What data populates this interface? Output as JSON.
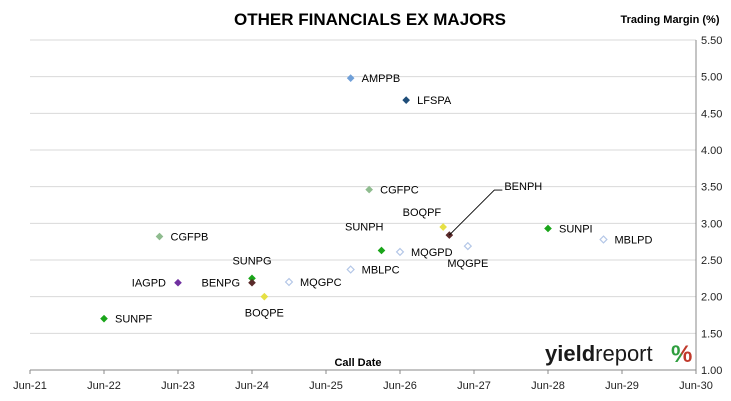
{
  "chart_data": {
    "type": "scatter",
    "title": "OTHER FINANCIALS EX MAJORS",
    "xlabel": "Call Date",
    "ylabel": "Trading Margin (%)",
    "x_ticks": [
      "Jun-21",
      "Jun-22",
      "Jun-23",
      "Jun-24",
      "Jun-25",
      "Jun-26",
      "Jun-27",
      "Jun-28",
      "Jun-29",
      "Jun-30"
    ],
    "xlim": [
      "2021-06",
      "2030-06"
    ],
    "ylim": [
      1.0,
      5.5
    ],
    "y_ticks": [
      "1.00",
      "1.50",
      "2.00",
      "2.50",
      "3.00",
      "3.50",
      "4.00",
      "4.50",
      "5.00",
      "5.50"
    ],
    "y_axis_position": "right",
    "grid": "horizontal",
    "points": [
      {
        "name": "AMPPB",
        "date": "2025-10",
        "y": 4.98,
        "color": "#6f9fd8",
        "filled": true
      },
      {
        "name": "LFSPA",
        "date": "2026-07",
        "y": 4.68,
        "color": "#1f4e79",
        "filled": true
      },
      {
        "name": "CGFPC",
        "date": "2026-01",
        "y": 3.46,
        "color": "#8fbc8f",
        "filled": true
      },
      {
        "name": "BENPH",
        "date": "2027-02",
        "y": 2.84,
        "color": "#5a2a2a",
        "filled": true
      },
      {
        "name": "BOQPF",
        "date": "2027-01",
        "y": 2.95,
        "color": "#e6e045",
        "filled": true
      },
      {
        "name": "SUNPI",
        "date": "2028-06",
        "y": 2.93,
        "color": "#1aa51a",
        "filled": true
      },
      {
        "name": "MBLPD",
        "date": "2029-03",
        "y": 2.78,
        "color": "#b4c7e7",
        "filled": false
      },
      {
        "name": "CGFPB",
        "date": "2023-03",
        "y": 2.82,
        "color": "#8fbc8f",
        "filled": true
      },
      {
        "name": "SUNPH",
        "date": "2026-03",
        "y": 2.63,
        "color": "#1aa51a",
        "filled": true
      },
      {
        "name": "MQGPD",
        "date": "2026-06",
        "y": 2.61,
        "color": "#b4c7e7",
        "filled": false
      },
      {
        "name": "MQGPE",
        "date": "2027-05",
        "y": 2.69,
        "color": "#b4c7e7",
        "filled": false
      },
      {
        "name": "MBLPC",
        "date": "2025-10",
        "y": 2.37,
        "color": "#b4c7e7",
        "filled": false
      },
      {
        "name": "SUNPG",
        "date": "2024-06",
        "y": 2.25,
        "color": "#1aa51a",
        "filled": true
      },
      {
        "name": "BENPG",
        "date": "2024-06",
        "y": 2.19,
        "color": "#5a2a2a",
        "filled": true
      },
      {
        "name": "IAGPD",
        "date": "2023-06",
        "y": 2.19,
        "color": "#7030a0",
        "filled": true
      },
      {
        "name": "MQGPC",
        "date": "2024-12",
        "y": 2.2,
        "color": "#b4c7e7",
        "filled": false
      },
      {
        "name": "BOQPE",
        "date": "2024-08",
        "y": 2.0,
        "color": "#e6e045",
        "filled": true
      },
      {
        "name": "SUNPF",
        "date": "2022-06",
        "y": 1.7,
        "color": "#1aa51a",
        "filled": true
      }
    ]
  },
  "logo": {
    "text_bold": "yield",
    "text_light": "report",
    "percent": "%",
    "color_green": "#2e9e3e",
    "color_red": "#c0392b"
  }
}
